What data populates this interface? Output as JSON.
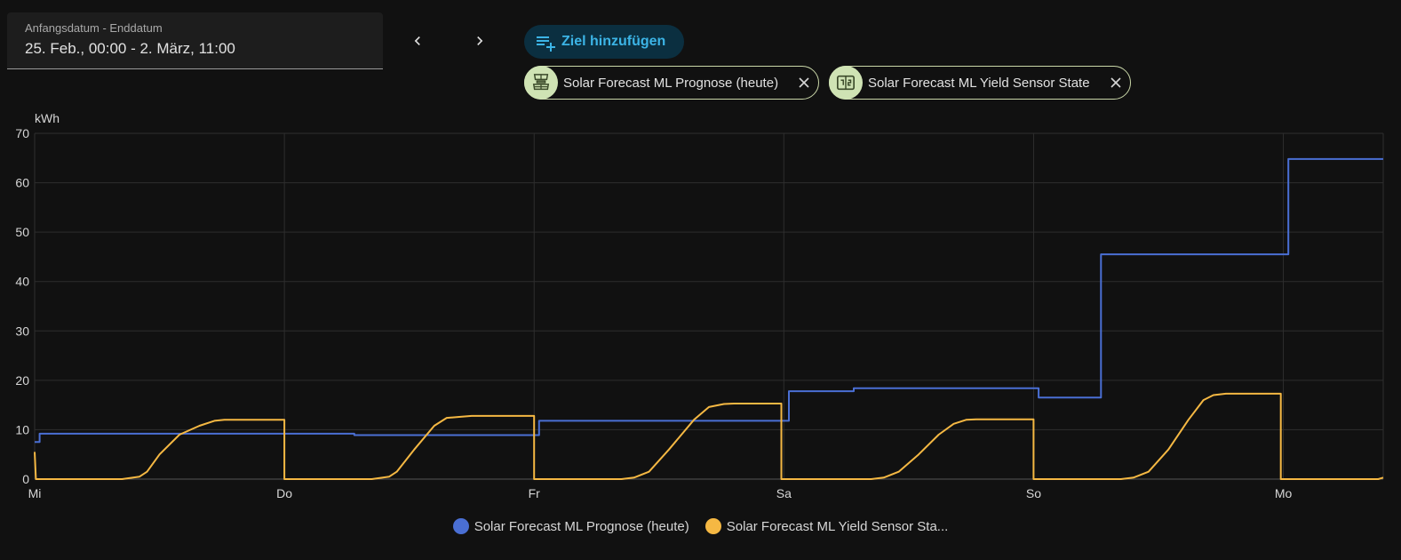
{
  "date_range": {
    "label": "Anfangsdatum - Enddatum",
    "value": "25. Feb., 00:00 - 2. März, 11:00"
  },
  "nav": {
    "prev_icon": "chevron-left-icon",
    "next_icon": "chevron-right-icon"
  },
  "add_target": {
    "label": "Ziel hinzufügen",
    "icon": "playlist-plus-icon"
  },
  "chips": [
    {
      "label": "Solar Forecast ML Prognose (heute)",
      "icon": "solar-panel-icon"
    },
    {
      "label": "Solar Forecast ML Yield Sensor State",
      "icon": "counter-icon"
    }
  ],
  "legend": [
    {
      "label": "Solar Forecast ML Prognose (heute)",
      "color": "#4a6fd4"
    },
    {
      "label": "Solar Forecast ML Yield Sensor Sta...",
      "color": "#f5b843"
    }
  ],
  "chart_data": {
    "type": "line",
    "ylabel": "kWh",
    "ylim": [
      0,
      70
    ],
    "yticks": [
      "0",
      "10",
      "20",
      "30",
      "40",
      "50",
      "60",
      "70"
    ],
    "x_unit": "days since Mi 00:00",
    "xlim": [
      0,
      5.4
    ],
    "xticks": [
      {
        "x": 0,
        "label": "Mi"
      },
      {
        "x": 1,
        "label": "Do"
      },
      {
        "x": 2,
        "label": "Fr"
      },
      {
        "x": 3,
        "label": "Sa"
      },
      {
        "x": 4,
        "label": "So"
      },
      {
        "x": 5,
        "label": "Mo"
      }
    ],
    "grid": true,
    "legend_position": "bottom",
    "series": [
      {
        "name": "Solar Forecast ML Prognose (heute)",
        "color": "#4a6fd4",
        "step": true,
        "points": [
          [
            0,
            7.5
          ],
          [
            0.02,
            7.5
          ],
          [
            0.02,
            9.2
          ],
          [
            1.0,
            9.2
          ],
          [
            1.02,
            9.2
          ],
          [
            1.28,
            9.2
          ],
          [
            1.28,
            8.9
          ],
          [
            2.02,
            8.9
          ],
          [
            2.02,
            11.8
          ],
          [
            3.02,
            11.8
          ],
          [
            3.02,
            17.8
          ],
          [
            3.28,
            17.8
          ],
          [
            3.28,
            18.4
          ],
          [
            4.02,
            18.4
          ],
          [
            4.02,
            16.5
          ],
          [
            4.27,
            16.5
          ],
          [
            4.27,
            45.5
          ],
          [
            5.02,
            45.5
          ],
          [
            5.02,
            64.8
          ],
          [
            5.4,
            64.8
          ]
        ]
      },
      {
        "name": "Solar Forecast ML Yield Sensor State",
        "color": "#f5b843",
        "points": [
          [
            0,
            5.5
          ],
          [
            0.005,
            0
          ],
          [
            0.35,
            0
          ],
          [
            0.42,
            0.5
          ],
          [
            0.45,
            1.5
          ],
          [
            0.5,
            5
          ],
          [
            0.58,
            9
          ],
          [
            0.66,
            10.8
          ],
          [
            0.72,
            11.8
          ],
          [
            0.76,
            12
          ],
          [
            1.0,
            12
          ],
          [
            1.0,
            0
          ],
          [
            1.35,
            0
          ],
          [
            1.42,
            0.5
          ],
          [
            1.45,
            1.5
          ],
          [
            1.52,
            6
          ],
          [
            1.6,
            10.8
          ],
          [
            1.65,
            12.4
          ],
          [
            1.7,
            12.6
          ],
          [
            1.75,
            12.8
          ],
          [
            2.0,
            12.8
          ],
          [
            2.0,
            0
          ],
          [
            2.35,
            0
          ],
          [
            2.4,
            0.3
          ],
          [
            2.46,
            1.5
          ],
          [
            2.54,
            6
          ],
          [
            2.64,
            12
          ],
          [
            2.7,
            14.6
          ],
          [
            2.76,
            15.2
          ],
          [
            2.8,
            15.3
          ],
          [
            2.99,
            15.3
          ],
          [
            2.99,
            0
          ],
          [
            3.35,
            0
          ],
          [
            3.4,
            0.3
          ],
          [
            3.46,
            1.5
          ],
          [
            3.54,
            5
          ],
          [
            3.62,
            9
          ],
          [
            3.68,
            11.2
          ],
          [
            3.73,
            12
          ],
          [
            3.77,
            12.1
          ],
          [
            4.0,
            12.1
          ],
          [
            4.0,
            0
          ],
          [
            4.35,
            0
          ],
          [
            4.4,
            0.3
          ],
          [
            4.46,
            1.5
          ],
          [
            4.54,
            6
          ],
          [
            4.62,
            12
          ],
          [
            4.68,
            16
          ],
          [
            4.72,
            17
          ],
          [
            4.77,
            17.3
          ],
          [
            4.99,
            17.3
          ],
          [
            4.99,
            0
          ],
          [
            5.38,
            0
          ],
          [
            5.4,
            0.3
          ]
        ]
      }
    ]
  }
}
